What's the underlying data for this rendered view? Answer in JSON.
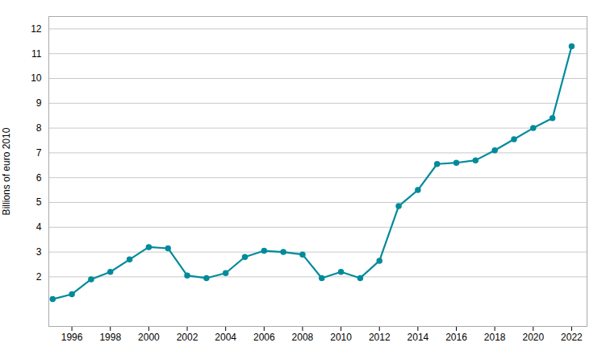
{
  "chart_data": {
    "type": "line",
    "x": [
      1995,
      1996,
      1997,
      1998,
      1999,
      2000,
      2001,
      2002,
      2003,
      2004,
      2005,
      2006,
      2007,
      2008,
      2009,
      2010,
      2011,
      2012,
      2013,
      2014,
      2015,
      2016,
      2017,
      2018,
      2019,
      2020,
      2021,
      2022
    ],
    "values": [
      1.1,
      1.3,
      1.9,
      2.2,
      2.7,
      3.2,
      3.15,
      2.05,
      1.95,
      2.15,
      2.8,
      3.05,
      3.0,
      2.9,
      1.95,
      2.2,
      1.95,
      2.65,
      4.85,
      5.5,
      6.55,
      6.6,
      6.7,
      7.1,
      7.55,
      8.0,
      8.4,
      11.3
    ],
    "color": "#008B9A",
    "marker": "circle",
    "ylabel": "Billions of euro 2010",
    "xlim": [
      1994.8,
      2022.8
    ],
    "ylim": [
      0,
      12.5
    ],
    "xticks": [
      1996,
      1998,
      2000,
      2002,
      2004,
      2006,
      2008,
      2010,
      2012,
      2014,
      2016,
      2018,
      2020,
      2022
    ],
    "yticks": [
      2,
      3,
      4,
      5,
      6,
      7,
      8,
      9,
      10,
      11,
      12
    ],
    "grid": "y"
  }
}
